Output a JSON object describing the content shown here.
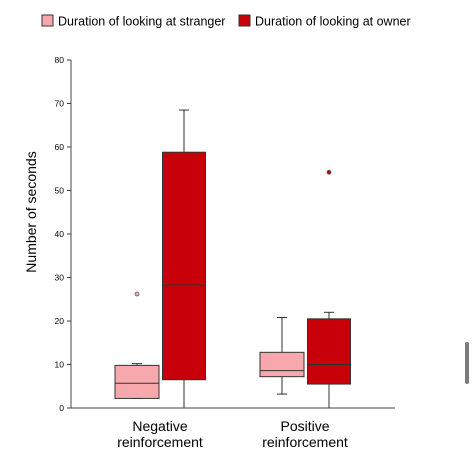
{
  "chart_data": {
    "type": "boxplot",
    "title": "",
    "xlabel": "",
    "ylabel": "Number of seconds",
    "ylim": [
      0,
      80
    ],
    "yticks": [
      0,
      10,
      20,
      30,
      40,
      50,
      60,
      70,
      80
    ],
    "categories": [
      {
        "label_lines": [
          "Negative",
          "reinforcement"
        ]
      },
      {
        "label_lines": [
          "Positive",
          "reinforcement"
        ]
      }
    ],
    "legend_position": "top",
    "series": [
      {
        "name": "Duration of looking at stranger",
        "fill": "#f7a8ad",
        "stroke": "#333333",
        "boxes": [
          {
            "whisker_low": 2.2,
            "q1": 2.2,
            "median": 5.7,
            "q3": 9.8,
            "whisker_high": 10.2,
            "outliers": [
              26.2
            ]
          },
          {
            "whisker_low": 3.2,
            "q1": 7.2,
            "median": 8.6,
            "q3": 12.8,
            "whisker_high": 20.8,
            "outliers": []
          }
        ]
      },
      {
        "name": "Duration of looking at owner",
        "fill": "#c8000a",
        "stroke": "#333333",
        "boxes": [
          {
            "whisker_low": 0,
            "q1": 6.5,
            "median": 28.3,
            "q3": 58.8,
            "whisker_high": 68.5,
            "outliers": []
          },
          {
            "whisker_low": 0,
            "q1": 5.5,
            "median": 10.0,
            "q3": 20.5,
            "whisker_high": 22.0,
            "outliers": [
              54.2
            ]
          }
        ]
      }
    ]
  }
}
